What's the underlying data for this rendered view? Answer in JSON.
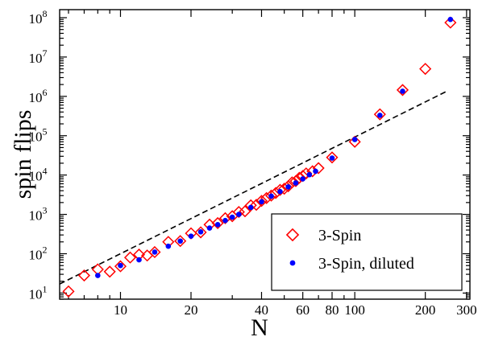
{
  "chart_data": {
    "type": "scatter",
    "xlabel": "N",
    "ylabel": "spin flips",
    "xscale": "log",
    "yscale": "log",
    "xlim": [
      5.5,
      310
    ],
    "ylim": [
      7,
      160000000
    ],
    "grid": false,
    "legend_position": "bottom-right",
    "x_ticks": [
      {
        "value": 10,
        "label": "10"
      },
      {
        "value": 20,
        "label": "20"
      },
      {
        "value": 40,
        "label": "40"
      },
      {
        "value": 60,
        "label": "60"
      },
      {
        "value": 80,
        "label": "80"
      },
      {
        "value": 100,
        "label": "100"
      },
      {
        "value": 200,
        "label": "200"
      },
      {
        "value": 300,
        "label": "300"
      }
    ],
    "y_ticks": [
      {
        "exp": 1,
        "base": "10",
        "sup": "1"
      },
      {
        "exp": 2,
        "base": "10",
        "sup": "2"
      },
      {
        "exp": 3,
        "base": "10",
        "sup": "3"
      },
      {
        "exp": 4,
        "base": "10",
        "sup": "4"
      },
      {
        "exp": 5,
        "base": "10",
        "sup": "5"
      },
      {
        "exp": 6,
        "base": "10",
        "sup": "6"
      },
      {
        "exp": 7,
        "base": "10",
        "sup": "7"
      },
      {
        "exp": 8,
        "base": "10",
        "sup": "8"
      }
    ],
    "series": [
      {
        "name": "3-Spin",
        "marker": "diamond-open",
        "color": "#ff0000",
        "points": [
          [
            6,
            11
          ],
          [
            7,
            28
          ],
          [
            8,
            40
          ],
          [
            9,
            35
          ],
          [
            10,
            48
          ],
          [
            11,
            80
          ],
          [
            12,
            95
          ],
          [
            13,
            90
          ],
          [
            14,
            110
          ],
          [
            16,
            200
          ],
          [
            18,
            210
          ],
          [
            20,
            330
          ],
          [
            22,
            350
          ],
          [
            24,
            550
          ],
          [
            26,
            600
          ],
          [
            28,
            800
          ],
          [
            30,
            900
          ],
          [
            32,
            1150
          ],
          [
            34,
            1200
          ],
          [
            36,
            1700
          ],
          [
            38,
            1750
          ],
          [
            40,
            2200
          ],
          [
            42,
            2600
          ],
          [
            44,
            3000
          ],
          [
            46,
            3500
          ],
          [
            48,
            4200
          ],
          [
            50,
            4500
          ],
          [
            52,
            5200
          ],
          [
            54,
            6500
          ],
          [
            56,
            7000
          ],
          [
            58,
            8500
          ],
          [
            60,
            9500
          ],
          [
            62,
            11000
          ],
          [
            66,
            12500
          ],
          [
            70,
            15000
          ],
          [
            80,
            28000
          ],
          [
            100,
            70000
          ],
          [
            128,
            350000
          ],
          [
            160,
            1450000
          ],
          [
            200,
            5000000
          ],
          [
            256,
            75000000
          ]
        ]
      },
      {
        "name": "3-Spin, diluted",
        "marker": "circle-filled",
        "color": "#0000ff",
        "points": [
          [
            8,
            28
          ],
          [
            10,
            50
          ],
          [
            12,
            70
          ],
          [
            14,
            110
          ],
          [
            16,
            155
          ],
          [
            18,
            210
          ],
          [
            20,
            280
          ],
          [
            22,
            360
          ],
          [
            24,
            450
          ],
          [
            26,
            550
          ],
          [
            28,
            700
          ],
          [
            30,
            850
          ],
          [
            32,
            1000
          ],
          [
            36,
            1500
          ],
          [
            40,
            2100
          ],
          [
            44,
            2900
          ],
          [
            48,
            3800
          ],
          [
            52,
            5000
          ],
          [
            56,
            6300
          ],
          [
            60,
            8000
          ],
          [
            64,
            10200
          ],
          [
            68,
            12500
          ],
          [
            80,
            27000
          ],
          [
            100,
            80000
          ],
          [
            128,
            330000
          ],
          [
            160,
            1350000
          ],
          [
            256,
            90000000
          ]
        ]
      }
    ],
    "reference_line": {
      "style": "dashed",
      "color": "#000000",
      "points": [
        [
          5.5,
          17
        ],
        [
          250,
          1400000
        ]
      ]
    }
  }
}
